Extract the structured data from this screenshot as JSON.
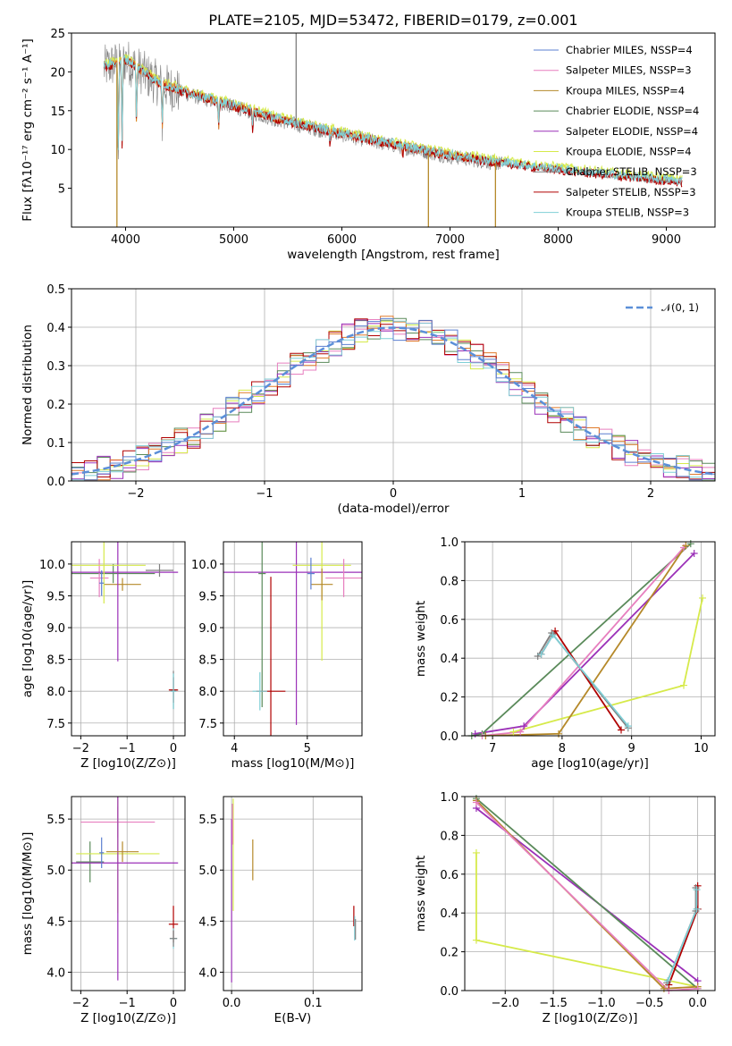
{
  "title": "PLATE=2105, MJD=53472, FIBERID=0179, z=0.001",
  "colors": {
    "Chabrier MILES": "#5b7fd0",
    "Salpeter MILES": "#e77fbf",
    "Kroupa MILES": "#b5892a",
    "Chabrier ELODIE": "#5a8a5a",
    "Salpeter ELODIE": "#9b30b8",
    "Kroupa ELODIE": "#d6ea4a",
    "Chabrier STELIB": "#7f7f7f",
    "Salpeter STELIB": "#b00000",
    "Kroupa STELIB": "#7fcfd6",
    "normal": "#5b8fd8",
    "extra": "#e07a2a"
  },
  "chart_data": [
    {
      "type": "line",
      "xlabel": "wavelength [Angstrom, rest frame]",
      "ylabel": "Flux [fλ10⁻¹⁷ erg cm⁻² s⁻¹ A⁻¹]",
      "xlim": [
        3500,
        9450
      ],
      "ylim": [
        0,
        25
      ],
      "xticks": [
        4000,
        5000,
        6000,
        7000,
        8000,
        9000
      ],
      "yticks": [
        5,
        10,
        15,
        20,
        25
      ],
      "legend_position": "upper right",
      "legend": [
        "Chabrier MILES, NSSP=4",
        "Salpeter MILES, NSSP=3",
        "Kroupa MILES, NSSP=4",
        "Chabrier ELODIE, NSSP=4",
        "Salpeter ELODIE, NSSP=4",
        "Kroupa ELODIE, NSSP=4",
        "Chabrier STELIB, NSSP=3",
        "Salpeter STELIB, NSSP=3",
        "Kroupa STELIB, NSSP=3"
      ],
      "continuum": {
        "x": [
          3800,
          4000,
          4300,
          4600,
          5000,
          5400,
          5800,
          6200,
          6600,
          7000,
          7400,
          7800,
          8200,
          8600,
          9000,
          9150
        ],
        "y": [
          20.5,
          21.5,
          18.5,
          17.0,
          15.5,
          13.8,
          12.5,
          11.3,
          10.2,
          9.1,
          8.3,
          7.6,
          7.0,
          6.4,
          5.9,
          5.7
        ]
      },
      "absorption_lines": [
        {
          "x": 3933,
          "depth": 0.55
        },
        {
          "x": 3968,
          "depth": 0.5
        },
        {
          "x": 4101,
          "depth": 0.35
        },
        {
          "x": 4340,
          "depth": 0.3
        },
        {
          "x": 4861,
          "depth": 0.2
        },
        {
          "x": 5175,
          "depth": 0.15
        },
        {
          "x": 5890,
          "depth": 0.12
        },
        {
          "x": 6563,
          "depth": 0.1
        }
      ],
      "spikes": [
        {
          "x": 3920,
          "to": 0
        },
        {
          "x": 5577,
          "to": 25
        },
        {
          "x": 6800,
          "to": 0
        },
        {
          "x": 7420,
          "to": 0
        }
      ]
    },
    {
      "type": "step",
      "xlabel": "(data-model)/error",
      "ylabel": "Normed distribution",
      "xlim": [
        -2.5,
        2.5
      ],
      "ylim": [
        0,
        0.5
      ],
      "xticks": [
        -2,
        -1,
        0,
        1,
        2
      ],
      "yticks": [
        0.0,
        0.1,
        0.2,
        0.3,
        0.4,
        0.5
      ],
      "legend": [
        "𝒩(0, 1)"
      ],
      "legend_position": "upper right",
      "bin_width": 0.1,
      "normal_curve": {
        "mean": 0,
        "sigma": 1
      }
    },
    {
      "type": "errorbar",
      "xlabel": "Z [log10(Z/Z⊙)]",
      "ylabel": "age  [log10(age/yr)]",
      "xlim": [
        -2.2,
        0.25
      ],
      "ylim": [
        7.3,
        10.35
      ],
      "xticks": [
        -2,
        -1,
        0
      ],
      "yticks": [
        7.5,
        8.0,
        8.5,
        9.0,
        9.5,
        10.0
      ],
      "points": [
        {
          "model": "Chabrier ELODIE",
          "x": -1.3,
          "y": 9.85,
          "xerr": 0.9,
          "yerr": 0.15
        },
        {
          "model": "Salpeter MILES",
          "x": -1.6,
          "y": 9.78,
          "xerr": 0.2,
          "yerr": 0.3
        },
        {
          "model": "Kroupa MILES",
          "x": -1.1,
          "y": 9.68,
          "xerr": 0.4,
          "yerr": 0.1
        },
        {
          "model": "Salpeter ELODIE",
          "x": -1.2,
          "y": 9.87,
          "xerr": 1.3,
          "yerr": 1.4
        },
        {
          "model": "Kroupa ELODIE",
          "x": -1.5,
          "y": 9.98,
          "xerr": 0.9,
          "yerr": 0.6
        },
        {
          "model": "Chabrier STELIB",
          "x": 0.0,
          "y": 8.02,
          "xerr": 0.08,
          "yerr": 0.3
        },
        {
          "model": "Salpeter STELIB",
          "x": 0.0,
          "y": 8.02,
          "xerr": 0.1,
          "yerr": 0.2
        },
        {
          "model": "Kroupa STELIB",
          "x": 0.0,
          "y": 8.0,
          "xerr": 0.06,
          "yerr": 0.28
        },
        {
          "model": "Chabrier MILES",
          "x": -1.55,
          "y": 9.7,
          "xerr": 0.05,
          "yerr": 0.2
        },
        {
          "model": "Chabrier STELIB",
          "x": -0.3,
          "y": 9.9,
          "xerr": 0.3,
          "yerr": 0.1
        }
      ]
    },
    {
      "type": "errorbar",
      "xlabel": "mass [log10(M/M⊙)]",
      "ylabel": "",
      "xlim": [
        3.85,
        5.75
      ],
      "ylim": [
        7.3,
        10.35
      ],
      "xticks": [
        4,
        5
      ],
      "yticks": [
        7.5,
        8.0,
        8.5,
        9.0,
        9.5,
        10.0
      ],
      "points": [
        {
          "model": "Salpeter ELODIE",
          "x": 4.85,
          "y": 9.87,
          "xerr": 1.0,
          "yerr": 2.4
        },
        {
          "model": "Kroupa ELODIE",
          "x": 5.2,
          "y": 9.98,
          "xerr": 0.4,
          "yerr": 1.5
        },
        {
          "model": "Chabrier ELODIE",
          "x": 4.38,
          "y": 9.85,
          "xerr": 0.05,
          "yerr": 2.1
        },
        {
          "model": "Salpeter STELIB",
          "x": 4.5,
          "y": 8.0,
          "xerr": 0.2,
          "yerr": 1.8
        },
        {
          "model": "Kroupa STELIB",
          "x": 4.35,
          "y": 8.0,
          "xerr": 0.1,
          "yerr": 0.3
        },
        {
          "model": "Kroupa MILES",
          "x": 5.2,
          "y": 9.68,
          "xerr": 0.15,
          "yerr": 0.25
        },
        {
          "model": "Salpeter MILES",
          "x": 5.5,
          "y": 9.78,
          "xerr": 0.25,
          "yerr": 0.3
        },
        {
          "model": "Chabrier MILES",
          "x": 5.05,
          "y": 9.85,
          "xerr": 0.05,
          "yerr": 0.25
        }
      ]
    },
    {
      "type": "line",
      "xlabel": "age  [log10(age/yr)]",
      "ylabel": "mass weight",
      "xlim": [
        6.6,
        10.2
      ],
      "ylim": [
        0,
        1
      ],
      "xticks": [
        7,
        8,
        9,
        10
      ],
      "yticks": [
        0.0,
        0.2,
        0.4,
        0.6,
        0.8,
        1.0
      ],
      "series": [
        {
          "model": "Kroupa ELODIE",
          "x": [
            7.3,
            9.75,
            10.02
          ],
          "y": [
            0.02,
            0.26,
            0.71
          ]
        },
        {
          "model": "Salpeter ELODIE",
          "x": [
            6.75,
            7.45,
            9.9
          ],
          "y": [
            0.01,
            0.05,
            0.94
          ]
        },
        {
          "model": "Chabrier ELODIE",
          "x": [
            6.7,
            6.85,
            9.85
          ],
          "y": [
            0.0,
            0.01,
            0.99
          ]
        },
        {
          "model": "Salpeter MILES",
          "x": [
            6.85,
            7.4,
            9.75
          ],
          "y": [
            0.0,
            0.02,
            0.97
          ]
        },
        {
          "model": "Kroupa MILES",
          "x": [
            6.9,
            7.95,
            9.78
          ],
          "y": [
            0.0,
            0.01,
            0.98
          ]
        },
        {
          "model": "Salpeter STELIB",
          "x": [
            7.7,
            7.9,
            8.85
          ],
          "y": [
            0.42,
            0.54,
            0.03
          ]
        },
        {
          "model": "Chabrier STELIB",
          "x": [
            7.65,
            7.85,
            8.95
          ],
          "y": [
            0.41,
            0.53,
            0.04
          ]
        },
        {
          "model": "Kroupa STELIB",
          "x": [
            7.7,
            7.87,
            8.95
          ],
          "y": [
            0.42,
            0.52,
            0.05
          ]
        }
      ]
    },
    {
      "type": "errorbar",
      "xlabel": "Z [log10(Z/Z⊙)]",
      "ylabel": "mass [log10(M/M⊙)]",
      "xlim": [
        -2.2,
        0.25
      ],
      "ylim": [
        3.82,
        5.72
      ],
      "xticks": [
        -2,
        -1,
        0
      ],
      "yticks": [
        4.0,
        4.5,
        5.0,
        5.5
      ],
      "points": [
        {
          "model": "Salpeter MILES",
          "x": -1.2,
          "y": 5.47,
          "xerr": 0.8,
          "yerr": 0.15
        },
        {
          "model": "Chabrier ELODIE",
          "x": -1.8,
          "y": 5.08,
          "xerr": 0.3,
          "yerr": 0.2
        },
        {
          "model": "Kroupa ELODIE",
          "x": -1.2,
          "y": 5.16,
          "xerr": 0.9,
          "yerr": 0.58
        },
        {
          "model": "Salpeter ELODIE",
          "x": -1.2,
          "y": 5.07,
          "xerr": 1.3,
          "yerr": 1.15
        },
        {
          "model": "Kroupa MILES",
          "x": -1.1,
          "y": 5.18,
          "xerr": 0.35,
          "yerr": 0.1
        },
        {
          "model": "Chabrier MILES",
          "x": -1.55,
          "y": 5.17,
          "xerr": 0.05,
          "yerr": 0.15
        },
        {
          "model": "Salpeter STELIB",
          "x": 0.0,
          "y": 4.47,
          "xerr": 0.1,
          "yerr": 0.18
        },
        {
          "model": "Kroupa STELIB",
          "x": 0.0,
          "y": 4.33,
          "xerr": 0.08,
          "yerr": 0.1
        },
        {
          "model": "Chabrier STELIB",
          "x": 0.0,
          "y": 4.33,
          "xerr": 0.08,
          "yerr": 0.08
        }
      ]
    },
    {
      "type": "errorbar",
      "xlabel": "E(B-V)",
      "ylabel": "",
      "xlim": [
        -0.01,
        0.16
      ],
      "ylim": [
        3.82,
        5.72
      ],
      "xticks": [
        0.0,
        0.1
      ],
      "yticks": [
        4.0,
        4.5,
        5.0,
        5.5
      ],
      "points": [
        {
          "model": "Salpeter ELODIE",
          "x": 0.0,
          "y": 4.7,
          "xerr": 0.0,
          "yerr": 0.8
        },
        {
          "model": "Kroupa ELODIE",
          "x": 0.002,
          "y": 5.15,
          "xerr": 0.0,
          "yerr": 0.55
        },
        {
          "model": "Salpeter MILES",
          "x": 0.001,
          "y": 5.45,
          "xerr": 0.0,
          "yerr": 0.2
        },
        {
          "model": "Kroupa MILES",
          "x": 0.026,
          "y": 5.1,
          "xerr": 0.0,
          "yerr": 0.2
        },
        {
          "model": "Salpeter STELIB",
          "x": 0.15,
          "y": 4.55,
          "xerr": 0.0,
          "yerr": 0.1
        },
        {
          "model": "Kroupa STELIB",
          "x": 0.151,
          "y": 4.43,
          "xerr": 0.0,
          "yerr": 0.12
        },
        {
          "model": "Chabrier STELIB",
          "x": 0.152,
          "y": 4.42,
          "xerr": 0.0,
          "yerr": 0.1
        }
      ]
    },
    {
      "type": "line",
      "xlabel": "Z [log10(Z/Z⊙)]",
      "ylabel": "mass weight",
      "xlim": [
        -2.42,
        0.18
      ],
      "ylim": [
        0,
        1
      ],
      "xticks": [
        -2.0,
        -1.5,
        -1.0,
        -0.5,
        0.0
      ],
      "yticks": [
        0.0,
        0.2,
        0.4,
        0.6,
        0.8,
        1.0
      ],
      "series": [
        {
          "model": "Kroupa ELODIE",
          "x": [
            -2.3,
            -2.3,
            0.0
          ],
          "y": [
            0.71,
            0.26,
            0.02
          ]
        },
        {
          "model": "Salpeter ELODIE",
          "x": [
            -2.3,
            0.0
          ],
          "y": [
            0.94,
            0.05
          ]
        },
        {
          "model": "Chabrier ELODIE",
          "x": [
            -2.3,
            0.0
          ],
          "y": [
            0.99,
            0.01
          ]
        },
        {
          "model": "Kroupa MILES",
          "x": [
            -2.3,
            -0.35,
            0.0
          ],
          "y": [
            0.98,
            0.01,
            0.02
          ]
        },
        {
          "model": "Salpeter MILES",
          "x": [
            -2.3,
            -0.3,
            0.0
          ],
          "y": [
            0.97,
            0.0,
            0.01
          ]
        },
        {
          "model": "Salpeter STELIB",
          "x": [
            0.0,
            0.0,
            -0.3
          ],
          "y": [
            0.54,
            0.42,
            0.03
          ]
        },
        {
          "model": "Chabrier STELIB",
          "x": [
            -0.02,
            -0.02,
            -0.32
          ],
          "y": [
            0.53,
            0.41,
            0.04
          ]
        },
        {
          "model": "Kroupa STELIB",
          "x": [
            -0.01,
            -0.01,
            -0.31
          ],
          "y": [
            0.52,
            0.42,
            0.05
          ]
        }
      ]
    }
  ]
}
